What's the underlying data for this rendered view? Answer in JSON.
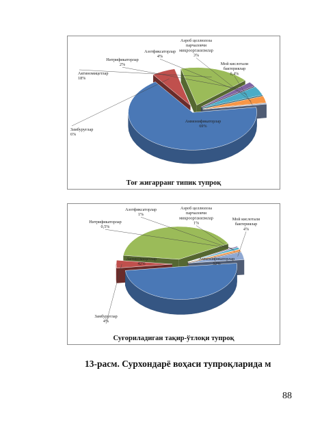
{
  "colors": {
    "ammonifiers": "#4a78b6",
    "fungi": "#c0504d",
    "actinomycetes": "#9bbb59",
    "nitrifiers": "#8064a2",
    "nitrogen_fixers": "#4bacc6",
    "cellulose": "#f79646",
    "butyric": "#8fa8d2"
  },
  "chart_data": [
    {
      "type": "pie",
      "title": "Тоғ жигарранг типик тупроқ",
      "slices": [
        {
          "lines": [
            "Аммонификаторлар",
            "69%"
          ],
          "value": 69
        },
        {
          "lines": [
            "Замбуруғлар",
            "6%"
          ],
          "value": 6
        },
        {
          "lines": [
            "Актиномицетлар",
            "18%"
          ],
          "value": 18
        },
        {
          "lines": [
            "Нитрификаторлар",
            "2%"
          ],
          "value": 2
        },
        {
          "lines": [
            "Азотфиксаторлар",
            "4%"
          ],
          "value": 4
        },
        {
          "lines": [
            "Аэроб целлюлоза",
            "парчаловчи",
            "микроорганизмлар",
            "3%"
          ],
          "value": 3
        },
        {
          "lines": [
            "Мой кислотали",
            "бактериялар",
            "0,4%"
          ],
          "value": 0.4
        }
      ]
    },
    {
      "type": "pie",
      "title": "Суғориладиган тақир-ўтлоқи тупроқ",
      "slices": [
        {
          "lines": [
            "Аммонификаторлар",
            "52%"
          ],
          "value": 52
        },
        {
          "lines": [
            "Замбуруғлар",
            "4%"
          ],
          "value": 4
        },
        {
          "lines": [
            "Актиномицетлар",
            "42%"
          ],
          "value": 42
        },
        {
          "lines": [
            "Нитрификаторлар",
            "0,5%"
          ],
          "value": 0.5
        },
        {
          "lines": [
            "Азотфиксаторлар",
            "1%"
          ],
          "value": 1
        },
        {
          "lines": [
            "Аэроб целлюлоза",
            "парчаловчи",
            "микроорганизмлар",
            "1%"
          ],
          "value": 1
        },
        {
          "lines": [
            "Мой кислотали",
            "бактериялар",
            "4%"
          ],
          "value": 4
        }
      ]
    }
  ],
  "figure_caption": "13-расм. Сурхондарё воҳаси тупроқларида м",
  "page_number": "88"
}
